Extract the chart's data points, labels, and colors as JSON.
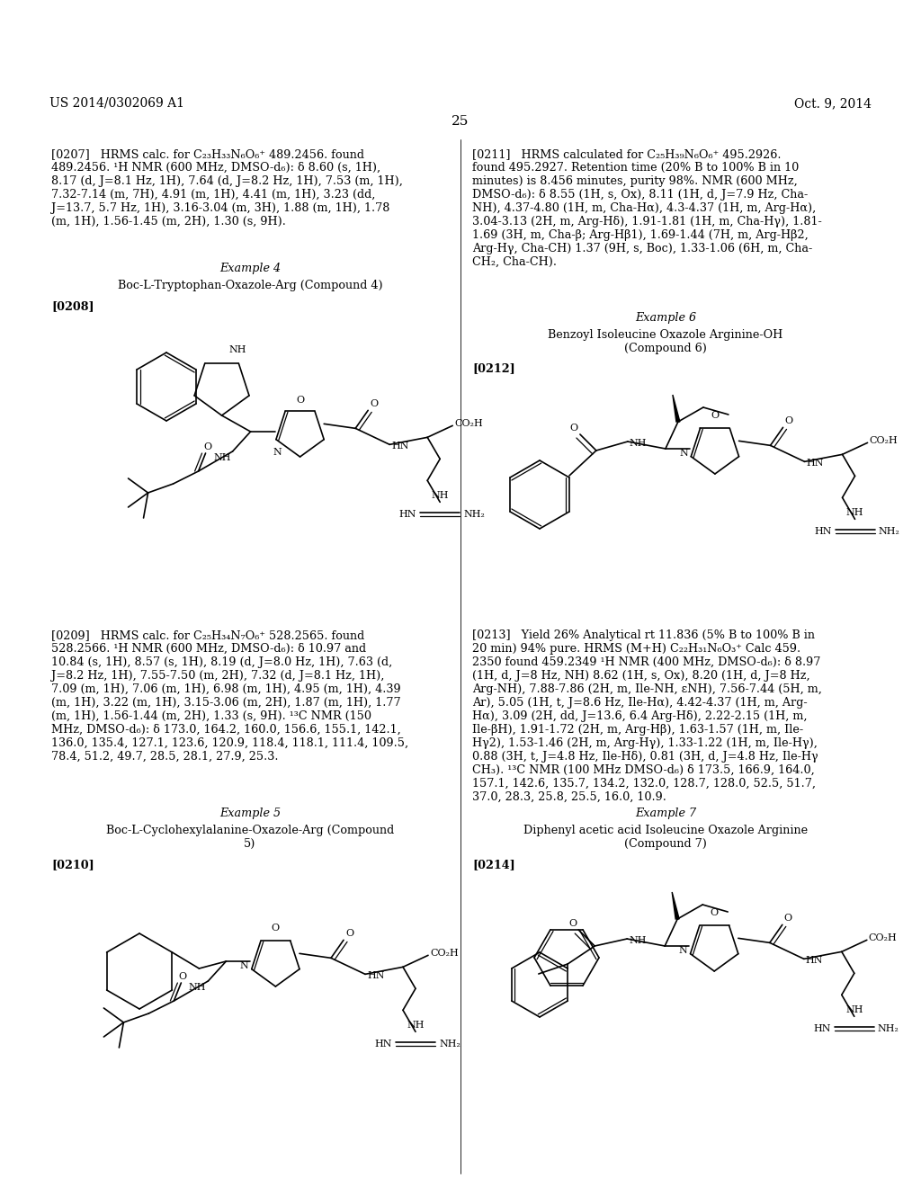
{
  "bg_color": "#ffffff",
  "header_left": "US 2014/0302069 A1",
  "header_right": "Oct. 9, 2014",
  "page_number": "25"
}
